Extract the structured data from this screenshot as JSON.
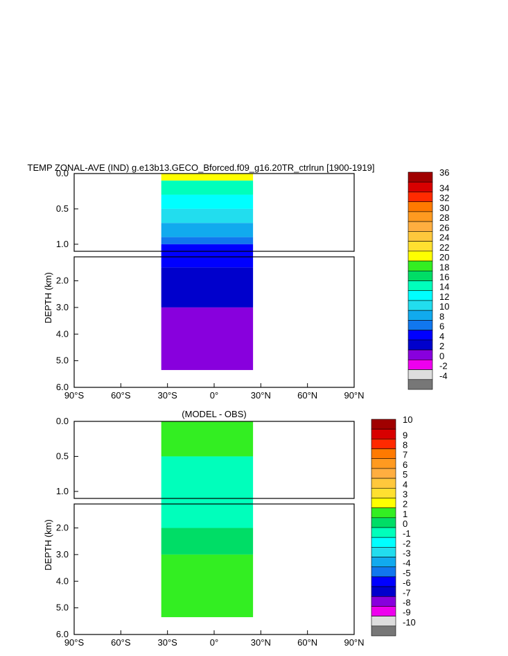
{
  "chart_data": [
    {
      "type": "heatmap",
      "title": "TEMP ZONAL-AVE (IND) g.e13b13.GECO_Bforced.f09_g16.20TR_ctrlrun [1900-1919]",
      "xlabel": "",
      "ylabel": "DEPTH (km)",
      "x_ticks": [
        "90°S",
        "60°S",
        "30°S",
        "0°",
        "30°N",
        "60°N",
        "90°N"
      ],
      "y_ticks_upper": [
        "0.0",
        "0.5",
        "1.0"
      ],
      "y_ticks_lower": [
        "2.0",
        "3.0",
        "4.0",
        "5.0",
        "6.0"
      ],
      "xlim": [
        -90,
        90
      ],
      "ylim": [
        6.0,
        0.0
      ],
      "data_extent_lat": [
        -34,
        25
      ],
      "colorbar_labels": [
        "36",
        "34",
        "32",
        "30",
        "28",
        "26",
        "24",
        "22",
        "20",
        "18",
        "16",
        "14",
        "12",
        "10",
        "8",
        "6",
        "4",
        "2",
        "0",
        "-2",
        "-4"
      ],
      "colorbar_colors": [
        "#a00000",
        "#d80000",
        "#ff2a00",
        "#ff7a00",
        "#ff9a20",
        "#ffae40",
        "#ffc83c",
        "#ffe030",
        "#ffff00",
        "#33ee22",
        "#00dd66",
        "#00ffbb",
        "#00ffff",
        "#22ddee",
        "#11aaee",
        "#1177ee",
        "#0000ff",
        "#0000cc",
        "#8800dd",
        "#ee00ee",
        "#dddddd",
        "#777777"
      ],
      "bands": [
        {
          "depth_km": 0.0,
          "value": 20
        },
        {
          "depth_km": 0.1,
          "value": 14
        },
        {
          "depth_km": 0.3,
          "value": 12
        },
        {
          "depth_km": 0.5,
          "value": 10
        },
        {
          "depth_km": 0.7,
          "value": 8
        },
        {
          "depth_km": 0.9,
          "value": 6
        },
        {
          "depth_km": 1.0,
          "value": 4
        },
        {
          "depth_km": 1.5,
          "value": 2
        },
        {
          "depth_km": 3.0,
          "value": 0
        }
      ]
    },
    {
      "type": "heatmap",
      "title": "(MODEL - OBS)",
      "xlabel": "",
      "ylabel": "DEPTH (km)",
      "x_ticks": [
        "90°S",
        "60°S",
        "30°S",
        "0°",
        "30°N",
        "60°N",
        "90°N"
      ],
      "y_ticks_upper": [
        "0.0",
        "0.5",
        "1.0"
      ],
      "y_ticks_lower": [
        "2.0",
        "3.0",
        "4.0",
        "5.0",
        "6.0"
      ],
      "xlim": [
        -90,
        90
      ],
      "ylim": [
        6.0,
        0.0
      ],
      "data_extent_lat": [
        -34,
        25
      ],
      "colorbar_labels": [
        "10",
        "9",
        "8",
        "7",
        "6",
        "5",
        "4",
        "3",
        "2",
        "1",
        "0",
        "-1",
        "-2",
        "-3",
        "-4",
        "-5",
        "-6",
        "-7",
        "-8",
        "-9",
        "-10"
      ],
      "colorbar_colors": [
        "#a00000",
        "#d80000",
        "#ff2a00",
        "#ff7a00",
        "#ff9a20",
        "#ffae40",
        "#ffc83c",
        "#ffe030",
        "#ffff00",
        "#33ee22",
        "#00dd66",
        "#00ffbb",
        "#00ffff",
        "#22ddee",
        "#11aaee",
        "#1177ee",
        "#0000ff",
        "#0000cc",
        "#8800dd",
        "#ee00ee",
        "#dddddd",
        "#777777"
      ],
      "bands": [
        {
          "depth_km": 0.0,
          "value": 1
        },
        {
          "depth_km": 0.5,
          "value": -1
        },
        {
          "depth_km": 2.0,
          "value": 0
        },
        {
          "depth_km": 3.0,
          "value": 1
        }
      ]
    }
  ]
}
